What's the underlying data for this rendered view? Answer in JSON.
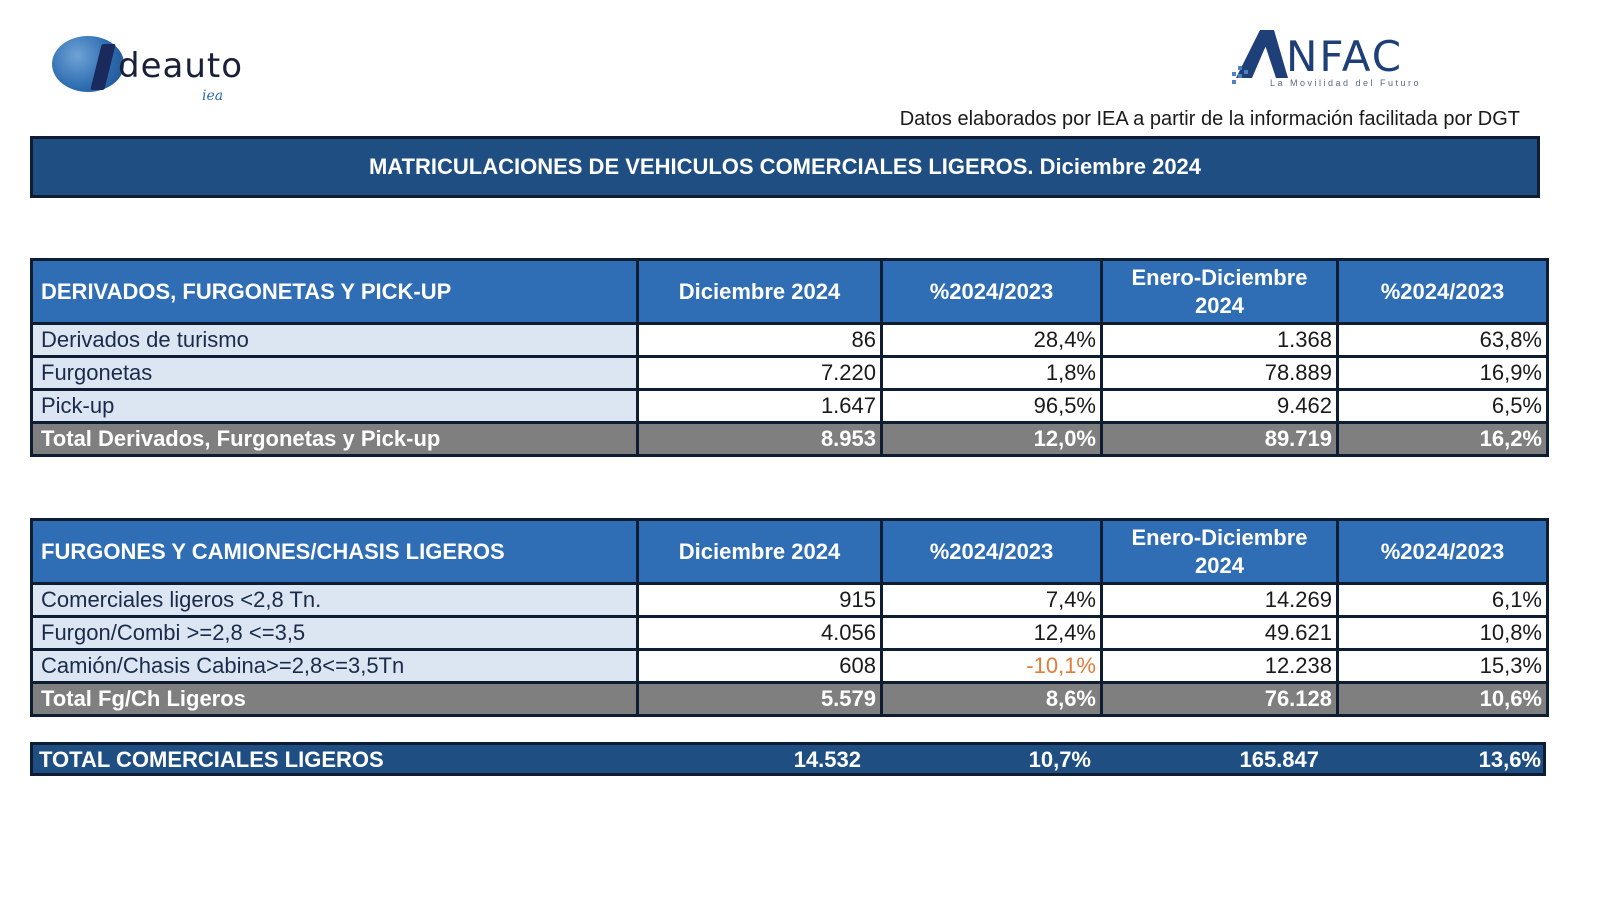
{
  "logos": {
    "ideauto": {
      "text": "deauto",
      "sub": "iea"
    },
    "anfac": {
      "text": "NFAC",
      "tagline": "La Movilidad del Futuro"
    }
  },
  "source_note": "Datos elaborados por IEA a partir de la información facilitada por DGT",
  "title": "MATRICULACIONES DE VEHICULOS COMERCIALES LIGEROS. Diciembre 2024",
  "colors": {
    "banner": "#1f4e82",
    "header": "#2f6db5",
    "label_bg": "#dce6f2",
    "total_bg": "#7f7f7f",
    "negative": "#e07b39"
  },
  "table1": {
    "headers": [
      "DERIVADOS, FURGONETAS Y PICK-UP",
      "Diciembre 2024",
      "%2024/2023",
      "Enero-Diciembre 2024",
      "%2024/2023"
    ],
    "rows": [
      [
        "Derivados de turismo",
        "86",
        "28,4%",
        "1.368",
        "63,8%"
      ],
      [
        "Furgonetas",
        "7.220",
        "1,8%",
        "78.889",
        "16,9%"
      ],
      [
        "Pick-up",
        "1.647",
        "96,5%",
        "9.462",
        "6,5%"
      ]
    ],
    "total": [
      "Total Derivados, Furgonetas y Pick-up",
      "8.953",
      "12,0%",
      "89.719",
      "16,2%"
    ]
  },
  "table2": {
    "headers": [
      "FURGONES Y CAMIONES/CHASIS LIGEROS",
      "Diciembre 2024",
      "%2024/2023",
      "Enero-Diciembre 2024",
      "%2024/2023"
    ],
    "rows": [
      [
        "Comerciales ligeros <2,8 Tn.",
        "915",
        "7,4%",
        "14.269",
        "6,1%"
      ],
      [
        "Furgon/Combi >=2,8 <=3,5",
        "4.056",
        "12,4%",
        "49.621",
        "10,8%"
      ],
      [
        "Camión/Chasis Cabina>=2,8<=3,5Tn",
        "608",
        "-10,1%",
        "12.238",
        "15,3%"
      ]
    ],
    "total": [
      "Total Fg/Ch Ligeros",
      "5.579",
      "8,6%",
      "76.128",
      "10,6%"
    ]
  },
  "grand_total": [
    "TOTAL COMERCIALES LIGEROS",
    "14.532",
    "10,7%",
    "165.847",
    "13,6%"
  ]
}
